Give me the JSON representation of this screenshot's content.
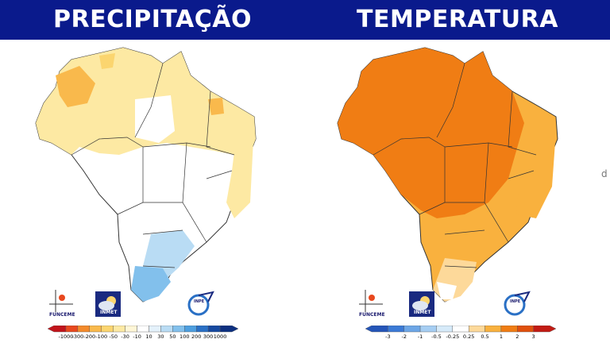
{
  "header": {
    "left_title": "PRECIPITAÇÃO",
    "right_title": "TEMPERATURA",
    "background_color": "#0a1a8c"
  },
  "logos": {
    "funceme_label": "FUNCEME",
    "inmet_label": "INMET",
    "inpe_label": "INPE"
  },
  "precipitation_legend": {
    "labels": [
      "-1000",
      "-300",
      "-200",
      "-100",
      "-50",
      "-30",
      "-10",
      "10",
      "30",
      "50",
      "100",
      "200",
      "300",
      "1000"
    ],
    "colors": [
      "#c1141b",
      "#e8481e",
      "#f38a2b",
      "#f9b94c",
      "#fbd56f",
      "#fde9a3",
      "#fff6d6",
      "#ffffff",
      "#e4f1fb",
      "#b9dcf4",
      "#82c0ec",
      "#4d9edf",
      "#2a70c5",
      "#1649a0",
      "#0d3080"
    ]
  },
  "temperature_legend": {
    "labels": [
      "-3",
      "-2",
      "-1",
      "-0.5",
      "-0.25",
      "0.25",
      "0.5",
      "1",
      "2",
      "3"
    ],
    "colors": [
      "#2455b8",
      "#3b7ad6",
      "#6da6e6",
      "#a5cdf2",
      "#d6eaf9",
      "#ffffff",
      "#fdd99a",
      "#f9b13e",
      "#f07d14",
      "#e0500d",
      "#c21b14"
    ]
  },
  "side_glyph": "ⅾ"
}
